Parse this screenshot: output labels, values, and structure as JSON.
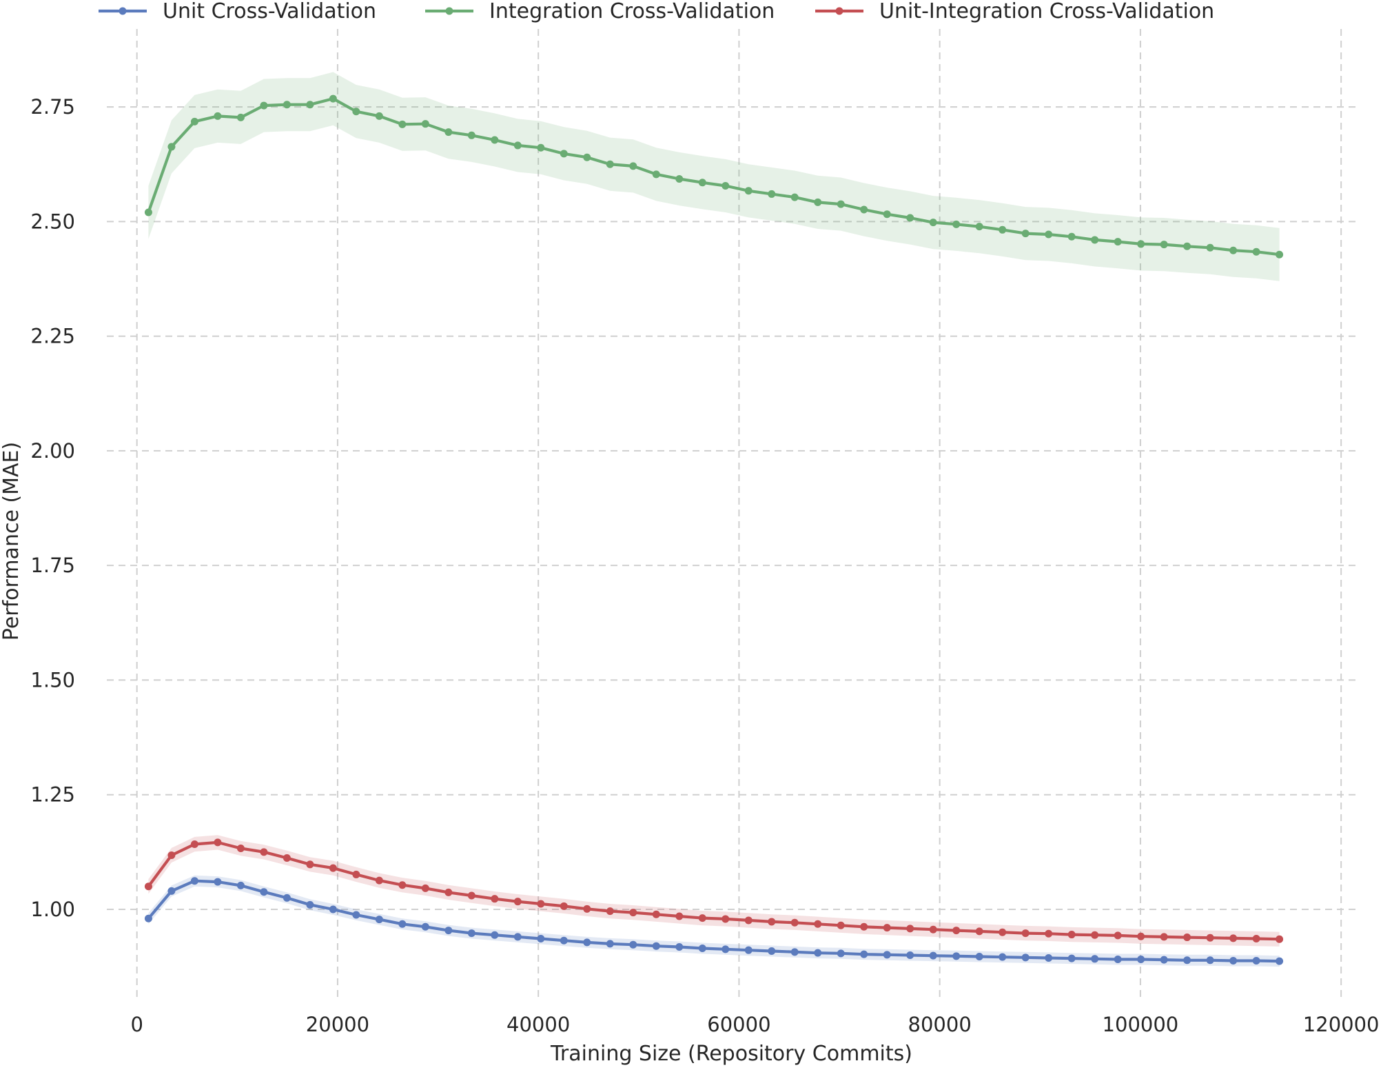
{
  "chart_data": {
    "type": "line",
    "title": "",
    "xlabel": "Training Size (Repository Commits)",
    "ylabel": "Performance (MAE)",
    "xlim": [
      -3000,
      121500
    ],
    "ylim": [
      0.8,
      2.92
    ],
    "xticks": [
      0,
      20000,
      40000,
      60000,
      80000,
      100000,
      120000
    ],
    "xtick_labels": [
      "0",
      "20000",
      "40000",
      "60000",
      "80000",
      "100000",
      "120000"
    ],
    "yticks": [
      1.0,
      1.25,
      1.5,
      1.75,
      2.0,
      2.25,
      2.5,
      2.75
    ],
    "ytick_labels": [
      "1.00",
      "1.25",
      "1.50",
      "1.75",
      "2.00",
      "2.25",
      "2.50",
      "2.75"
    ],
    "grid": true,
    "legend_position": "top",
    "x": [
      1150,
      3450,
      5750,
      8050,
      10350,
      12650,
      14950,
      17250,
      19550,
      21850,
      24150,
      26450,
      28750,
      31050,
      33350,
      35650,
      37950,
      40250,
      42550,
      44850,
      47150,
      49450,
      51750,
      54050,
      56350,
      58650,
      60950,
      63250,
      65550,
      67850,
      70150,
      72450,
      74750,
      77050,
      79350,
      81650,
      83950,
      86250,
      88550,
      90850,
      93150,
      95450,
      97750,
      100050,
      102350,
      104650,
      106950,
      109250,
      111550,
      113850
    ],
    "series": [
      {
        "name": "Unit Cross-Validation",
        "color": "#5b7bbd",
        "band_width": 0.012,
        "values": [
          0.98,
          1.04,
          1.062,
          1.06,
          1.052,
          1.038,
          1.025,
          1.01,
          1.0,
          0.988,
          0.978,
          0.968,
          0.962,
          0.954,
          0.948,
          0.944,
          0.94,
          0.936,
          0.932,
          0.928,
          0.925,
          0.923,
          0.92,
          0.918,
          0.915,
          0.913,
          0.911,
          0.909,
          0.907,
          0.905,
          0.904,
          0.902,
          0.901,
          0.9,
          0.899,
          0.898,
          0.897,
          0.896,
          0.895,
          0.894,
          0.893,
          0.892,
          0.891,
          0.891,
          0.89,
          0.889,
          0.889,
          0.888,
          0.888,
          0.887
        ]
      },
      {
        "name": "Integration Cross-Validation",
        "color": "#6aac73",
        "band_width": 0.058,
        "values": [
          2.52,
          2.663,
          2.718,
          2.73,
          2.727,
          2.753,
          2.755,
          2.755,
          2.768,
          2.74,
          2.73,
          2.712,
          2.713,
          2.695,
          2.688,
          2.678,
          2.666,
          2.661,
          2.648,
          2.64,
          2.625,
          2.621,
          2.603,
          2.593,
          2.585,
          2.578,
          2.567,
          2.56,
          2.553,
          2.542,
          2.538,
          2.526,
          2.516,
          2.508,
          2.498,
          2.494,
          2.489,
          2.482,
          2.474,
          2.472,
          2.467,
          2.46,
          2.456,
          2.451,
          2.45,
          2.446,
          2.443,
          2.437,
          2.434,
          2.428
        ]
      },
      {
        "name": "Unit-Integration Cross-Validation",
        "color": "#c44e52",
        "band_width": 0.016,
        "values": [
          1.05,
          1.118,
          1.142,
          1.146,
          1.133,
          1.125,
          1.112,
          1.098,
          1.09,
          1.076,
          1.063,
          1.053,
          1.046,
          1.037,
          1.03,
          1.023,
          1.017,
          1.012,
          1.007,
          1.001,
          0.996,
          0.993,
          0.989,
          0.985,
          0.981,
          0.979,
          0.976,
          0.973,
          0.971,
          0.968,
          0.965,
          0.962,
          0.96,
          0.958,
          0.956,
          0.954,
          0.952,
          0.95,
          0.948,
          0.947,
          0.945,
          0.944,
          0.943,
          0.941,
          0.94,
          0.939,
          0.938,
          0.937,
          0.936,
          0.935
        ]
      }
    ]
  }
}
